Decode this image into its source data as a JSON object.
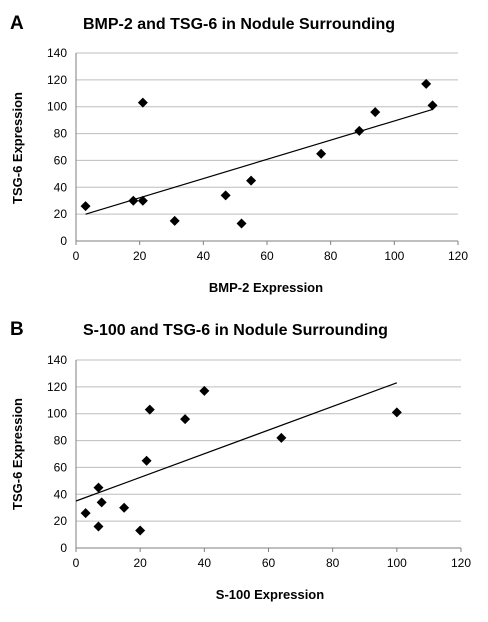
{
  "chart_data": [
    {
      "type": "scatter",
      "panel": "A",
      "title": "BMP-2 and TSG-6 in Nodule Surrounding",
      "xlabel": "BMP-2 Expression",
      "ylabel": "TSG-6 Expression",
      "xlim": [
        0,
        120
      ],
      "ylim": [
        0,
        140
      ],
      "xticks": [
        "0",
        "20",
        "40",
        "60",
        "80",
        "100",
        "120"
      ],
      "yticks": [
        "0",
        "20",
        "40",
        "60",
        "80",
        "100",
        "120",
        "140"
      ],
      "grid": true,
      "points": [
        {
          "x": 3,
          "y": 26
        },
        {
          "x": 18,
          "y": 30
        },
        {
          "x": 21,
          "y": 30
        },
        {
          "x": 21,
          "y": 103
        },
        {
          "x": 31,
          "y": 15
        },
        {
          "x": 47,
          "y": 34
        },
        {
          "x": 52,
          "y": 13
        },
        {
          "x": 55,
          "y": 45
        },
        {
          "x": 77,
          "y": 65
        },
        {
          "x": 89,
          "y": 82
        },
        {
          "x": 94,
          "y": 96
        },
        {
          "x": 110,
          "y": 117
        },
        {
          "x": 112,
          "y": 101
        }
      ],
      "trendline": {
        "x": [
          3,
          112
        ],
        "y": [
          20,
          98
        ]
      }
    },
    {
      "type": "scatter",
      "panel": "B",
      "title": "S-100 and TSG-6 in Nodule Surrounding",
      "xlabel": "S-100 Expression",
      "ylabel": "TSG-6 Expression",
      "xlim": [
        0,
        120
      ],
      "ylim": [
        0,
        140
      ],
      "xticks": [
        "0",
        "20",
        "40",
        "60",
        "80",
        "100",
        "120"
      ],
      "yticks": [
        "0",
        "20",
        "40",
        "60",
        "80",
        "100",
        "120",
        "140"
      ],
      "grid": true,
      "points": [
        {
          "x": 3,
          "y": 26
        },
        {
          "x": 7,
          "y": 45
        },
        {
          "x": 7,
          "y": 16
        },
        {
          "x": 8,
          "y": 34
        },
        {
          "x": 15,
          "y": 30
        },
        {
          "x": 20,
          "y": 13
        },
        {
          "x": 22,
          "y": 65
        },
        {
          "x": 23,
          "y": 103
        },
        {
          "x": 34,
          "y": 96
        },
        {
          "x": 40,
          "y": 117
        },
        {
          "x": 64,
          "y": 82
        },
        {
          "x": 100,
          "y": 101
        }
      ],
      "trendline": {
        "x": [
          0,
          100
        ],
        "y": [
          35,
          123
        ]
      }
    }
  ]
}
